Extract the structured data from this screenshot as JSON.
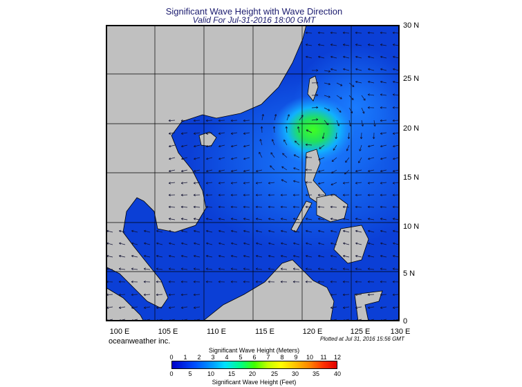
{
  "title": "Significant Wave Height with Wave Direction",
  "subtitle": "Valid For Jul-31-2016 18:00 GMT",
  "lat_labels": [
    "30 N",
    "25 N",
    "20 N",
    "15 N",
    "10 N",
    "5 N",
    "0"
  ],
  "lon_labels": [
    "100 E",
    "105 E",
    "110 E",
    "115 E",
    "120 E",
    "125 E",
    "130 E"
  ],
  "credit": "oceanweather inc.",
  "plotted": "Plotted at Jul 31, 2016 15:56 GMT",
  "colorbar": {
    "meters_title": "Significant Wave Height (Meters)",
    "feet_title": "Significant Wave Height (Feet)",
    "meters_ticks": [
      "0",
      "1",
      "2",
      "3",
      "4",
      "5",
      "6",
      "7",
      "8",
      "9",
      "10",
      "11",
      "12"
    ],
    "feet_ticks": [
      "0",
      "5",
      "10",
      "15",
      "20",
      "25",
      "30",
      "35",
      "40"
    ]
  },
  "colors": {
    "land": "#c0c0c0",
    "sea_low": "#0a3cd8",
    "sea_mid": "#1e8cff",
    "peak": "#30e030"
  }
}
